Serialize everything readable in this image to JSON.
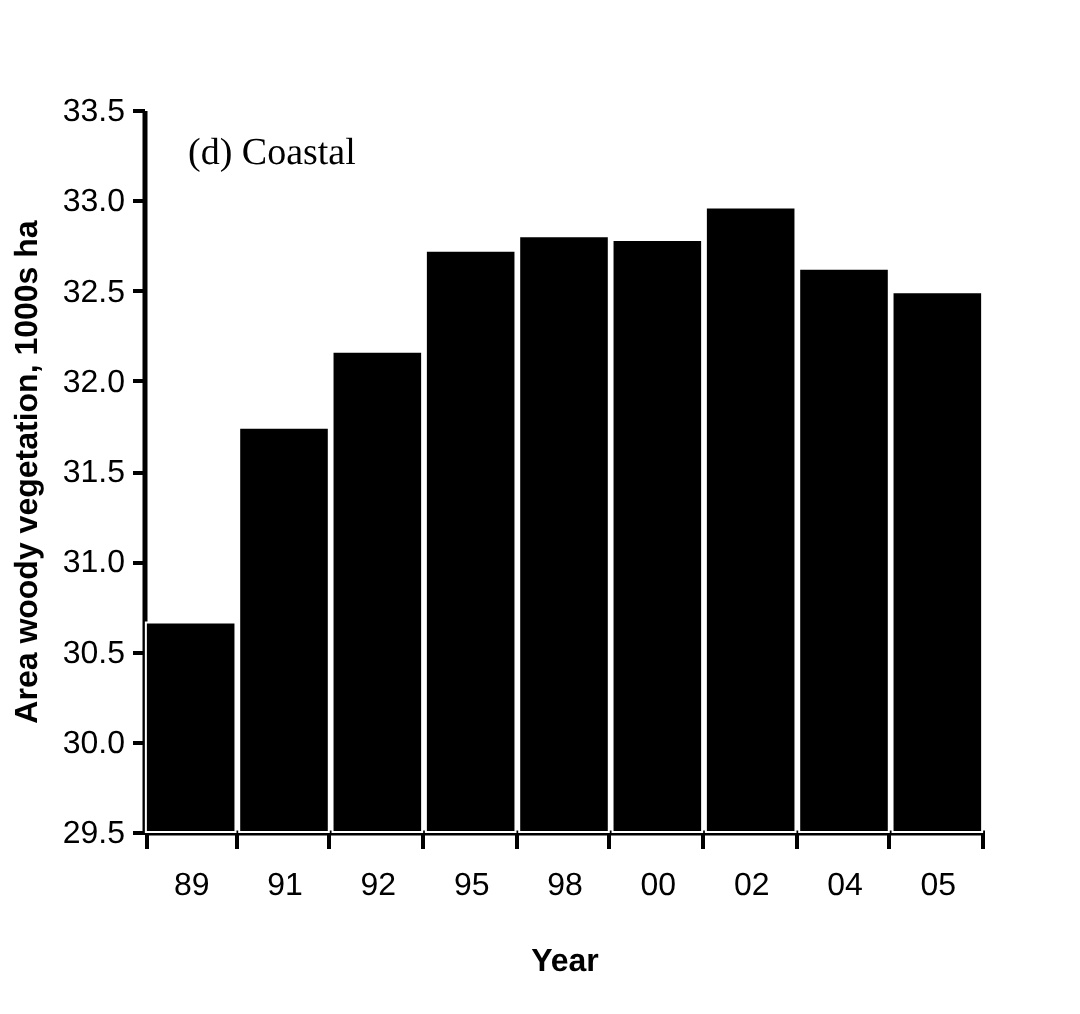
{
  "chart_data": {
    "type": "bar",
    "xlabel": "Year",
    "ylabel": "Area woody vegetation, 1000s ha",
    "annotations": [
      "(d) Coastal"
    ],
    "categories": [
      "89",
      "91",
      "92",
      "95",
      "98",
      "00",
      "02",
      "04",
      "05"
    ],
    "values": [
      30.66,
      31.74,
      32.16,
      32.72,
      32.8,
      32.78,
      32.96,
      32.62,
      32.49
    ],
    "color": "#000000",
    "ylim": [
      29.5,
      33.5
    ],
    "yticks": [
      29.5,
      {
        "value": 30,
        "label": "30.0"
      },
      30.5,
      {
        "value": 31,
        "label": "31.0"
      },
      31.5,
      {
        "value": 32,
        "label": "32.0"
      },
      32.5,
      {
        "value": 33,
        "label": "33.0"
      },
      33.5
    ],
    "grid": false
  }
}
